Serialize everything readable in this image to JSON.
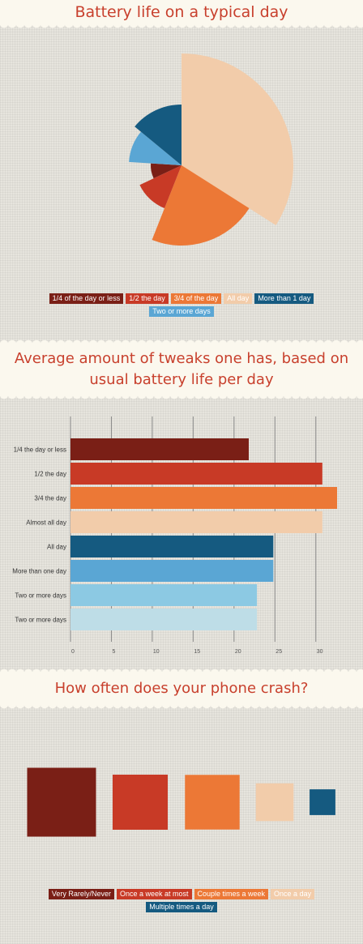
{
  "chart_data": [
    {
      "type": "pie",
      "title": "Battery life on a typical day",
      "categories": [
        "1/4 of the day or less",
        "1/2 the day",
        "3/4 of the day",
        "All day",
        "More than 1 day",
        "Two or more days"
      ],
      "values": [
        8,
        12,
        22,
        34,
        14,
        10
      ],
      "radii": [
        38,
        57,
        99,
        138,
        75,
        65
      ],
      "colors": [
        "#7a1f16",
        "#c83a26",
        "#ec7836",
        "#f2ccaa",
        "#155a80",
        "#5aa6d4"
      ],
      "legend_rows": [
        [
          0,
          1,
          2,
          3,
          4
        ],
        [
          5
        ]
      ]
    },
    {
      "type": "bar",
      "orientation": "horizontal",
      "title": "Average amount of tweaks one has, based on usual battery life per day",
      "categories": [
        "1/4 the day or less",
        "1/2 the day",
        "3/4 the day",
        "Almost all day",
        "All day",
        "More than one day",
        "Two or more days",
        "Two or more days"
      ],
      "values": [
        21.8,
        30.8,
        32.6,
        30.8,
        24.8,
        24.8,
        22.8,
        22.8
      ],
      "colors": [
        "#7a1f16",
        "#c83a26",
        "#ec7836",
        "#f2ccaa",
        "#155a80",
        "#5aa6d4",
        "#8cc9e3",
        "#bedde7"
      ],
      "xticks": [
        0,
        5,
        10,
        15,
        20,
        25,
        30
      ],
      "xlim": [
        0,
        32.6
      ]
    },
    {
      "type": "area",
      "title": "How often does your phone crash?",
      "categories": [
        "Very Rarely/Never",
        "Once a week at most",
        "Couple times a week",
        "Once a day",
        "Multiple times a day"
      ],
      "values": [
        100,
        64,
        63,
        30,
        14
      ],
      "colors": [
        "#7a1f16",
        "#c83a26",
        "#ec7836",
        "#f2ccaa",
        "#155a80"
      ],
      "legend_rows": [
        [
          0,
          1,
          2,
          3
        ],
        [
          4
        ]
      ]
    }
  ]
}
